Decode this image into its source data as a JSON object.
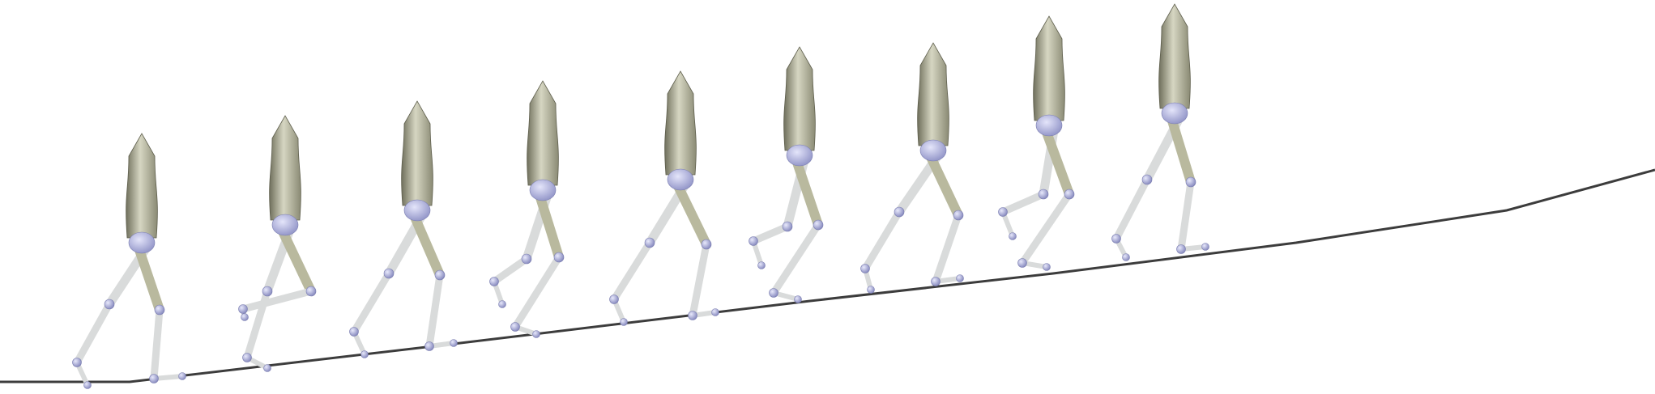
{
  "scene": {
    "subject": "bipedal-walker-gait-sequence",
    "background_color": "#ffffff",
    "ground_color": "#3c3c3c",
    "torso_color": "#a8a890",
    "torso_highlight": "#d6d6c2",
    "torso_shadow": "#6f6f5c",
    "hip_color": "#b6b8e6",
    "joint_color": "#b0b3de",
    "limb_color": "#d9dbdb",
    "near_limb_color": "#b9b99e",
    "frame_count": 9
  }
}
